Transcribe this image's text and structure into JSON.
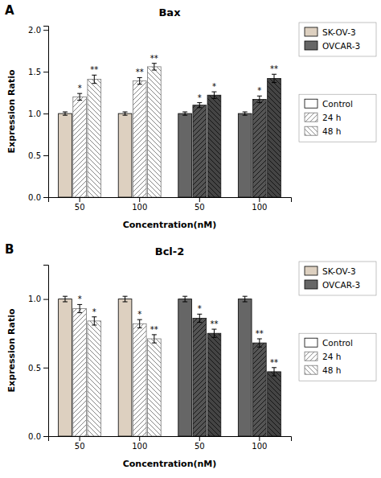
{
  "chart_data": [
    {
      "type": "bar",
      "title": "Bax",
      "xlabel": "Concentration(nM)",
      "ylabel": "Expression Ratio",
      "categories": [
        "50",
        "100",
        "50",
        "100"
      ],
      "series": [
        {
          "name": "Control",
          "values": [
            1.0,
            1.0,
            1.0,
            1.0
          ],
          "errors": [
            0.02,
            0.02,
            0.02,
            0.02
          ],
          "colors": [
            "#ddd0c0",
            "#ddd0c0",
            "#666666",
            "#666666"
          ]
        },
        {
          "name": "24 h",
          "values": [
            1.2,
            1.39,
            1.1,
            1.17
          ],
          "errors": [
            0.04,
            0.04,
            0.03,
            0.04
          ],
          "significance": [
            "*",
            "**",
            "*",
            "*"
          ],
          "colors": [
            "#ffffff",
            "#ffffff",
            "#555555",
            "#555555"
          ]
        },
        {
          "name": "48 h",
          "values": [
            1.41,
            1.56,
            1.22,
            1.42
          ],
          "errors": [
            0.05,
            0.04,
            0.04,
            0.05
          ],
          "significance": [
            "**",
            "**",
            "*",
            "**"
          ],
          "colors": [
            "#ffffff",
            "#ffffff",
            "#444444",
            "#444444"
          ]
        }
      ],
      "groups": [
        {
          "name": "SK-OV-3",
          "color": "#ddd0c0"
        },
        {
          "name": "OVCAR-3",
          "color": "#666666"
        }
      ],
      "ylim": [
        0.0,
        2.05
      ],
      "yticks": [
        {
          "value": 0,
          "label": "0.0"
        },
        0.5,
        {
          "value": 1,
          "label": "1.0"
        },
        1.5,
        {
          "value": 2,
          "label": "2.0"
        }
      ],
      "legend": "right",
      "annotations": [
        {
          "text": "A"
        }
      ]
    },
    {
      "type": "bar",
      "title": "Bcl-2",
      "xlabel": "Concentration(nM)",
      "ylabel": "Expression Ratio",
      "categories": [
        "50",
        "100",
        "50",
        "100"
      ],
      "series": [
        {
          "name": "Control",
          "values": [
            1.0,
            1.0,
            1.0,
            1.0
          ],
          "errors": [
            0.02,
            0.02,
            0.02,
            0.02
          ],
          "colors": [
            "#ddd0c0",
            "#ddd0c0",
            "#666666",
            "#666666"
          ]
        },
        {
          "name": "24 h",
          "values": [
            0.93,
            0.82,
            0.86,
            0.68
          ],
          "errors": [
            0.03,
            0.03,
            0.03,
            0.03
          ],
          "significance": [
            "*",
            "*",
            "*",
            "**"
          ],
          "colors": [
            "#ffffff",
            "#ffffff",
            "#555555",
            "#555555"
          ]
        },
        {
          "name": "48 h",
          "values": [
            0.84,
            0.71,
            0.75,
            0.47
          ],
          "errors": [
            0.03,
            0.03,
            0.03,
            0.03
          ],
          "significance": [
            "*",
            "**",
            "**",
            "**"
          ],
          "colors": [
            "#ffffff",
            "#ffffff",
            "#444444",
            "#444444"
          ]
        }
      ],
      "groups": [
        {
          "name": "SK-OV-3",
          "color": "#ddd0c0"
        },
        {
          "name": "OVCAR-3",
          "color": "#666666"
        }
      ],
      "ylim": [
        0.0,
        1.25
      ],
      "yticks": [
        {
          "value": 0,
          "label": "0.0"
        },
        0.5,
        {
          "value": 1,
          "label": "1.0"
        }
      ],
      "legend": "right",
      "annotations": [
        {
          "text": "B"
        }
      ]
    }
  ]
}
